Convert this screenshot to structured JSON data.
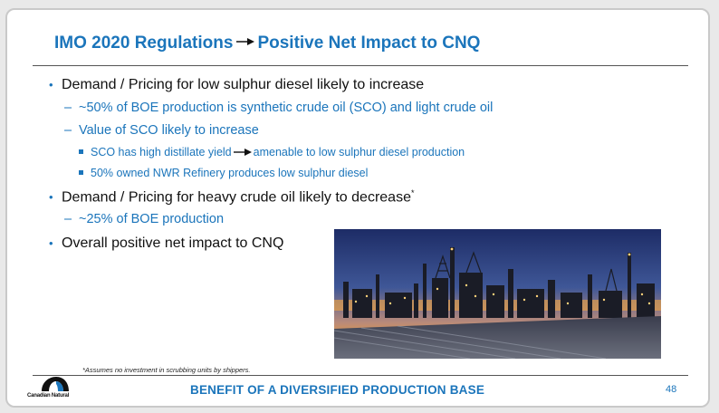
{
  "title": {
    "left": "IMO 2020 Regulations",
    "right": "Positive Net Impact to CNQ"
  },
  "bullets": {
    "b1": "Demand / Pricing for low sulphur diesel likely to increase",
    "b1_sub1": "~50% of BOE production is synthetic crude oil (SCO) and light crude oil",
    "b1_sub2": "Value of SCO likely to increase",
    "b1_sub2_item1_a": "SCO has high distillate yield",
    "b1_sub2_item1_b": "amenable to low sulphur diesel production",
    "b1_sub2_item2": "50% owned NWR Refinery produces low sulphur diesel",
    "b2": "Demand / Pricing for heavy crude oil likely to decrease",
    "b2_marker": "*",
    "b2_sub1": "~25% of BOE production",
    "b3": "Overall positive net impact to CNQ"
  },
  "footnote": "*Assumes no investment in scrubbing units by shippers.",
  "footer": {
    "title": "BENEFIT OF A DIVERSIFIED PRODUCTION BASE",
    "page_number": "48",
    "logo_text": "Canadian Natural"
  },
  "colors": {
    "accent": "#1b75bb"
  }
}
